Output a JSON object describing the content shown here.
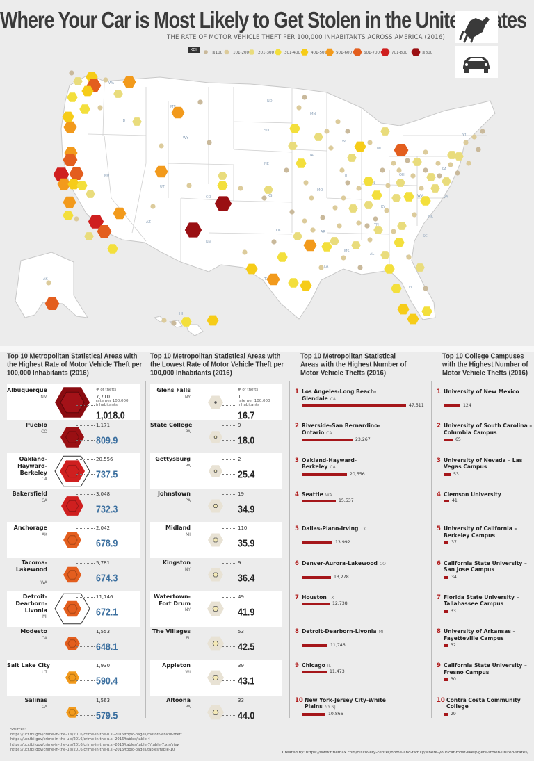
{
  "header": {
    "title": "Where Your Car is Most Likely to Get Stolen in the United States",
    "subtitle": "THE RATE OF MOTOR VEHICLE THEFT PER 100,000 INHABITANTS ACROSS AMERICA (2016)"
  },
  "legend": {
    "key_label": "KEY",
    "bins": [
      {
        "label": "≤100",
        "color": "#c9b99b"
      },
      {
        "label": "101-200",
        "color": "#dccb9b"
      },
      {
        "label": "201-300",
        "color": "#e9dc7c"
      },
      {
        "label": "301-400",
        "color": "#f3df3c"
      },
      {
        "label": "401-500",
        "color": "#f6cc18"
      },
      {
        "label": "501-600",
        "color": "#f29a1c"
      },
      {
        "label": "601-700",
        "color": "#e35e1e"
      },
      {
        "label": "701-800",
        "color": "#cf1f1f"
      },
      {
        "label": "≥800",
        "color": "#9a0f13"
      }
    ]
  },
  "map": {
    "state_labels": [
      "WA",
      "OR",
      "ID",
      "MT",
      "WY",
      "NV",
      "CA",
      "UT",
      "AZ",
      "CO",
      "NM",
      "ND",
      "SD",
      "NE",
      "KS",
      "OK",
      "TX",
      "MN",
      "IA",
      "MO",
      "AR",
      "LA",
      "WI",
      "IL",
      "MS",
      "MI",
      "IN",
      "KY",
      "TN",
      "AL",
      "OH",
      "GA",
      "FL",
      "SC",
      "NC",
      "VA",
      "WV",
      "PA",
      "NY",
      "AK",
      "HI"
    ]
  },
  "chart_data": [
    {
      "type": "bar",
      "title": "Top 10 Metropolitan Statistical Areas with the Highest Rate of Motor Vehicle Theft per 100,000 Inhabitants (2016)",
      "legend_labels": {
        "thefts": "# of thefts",
        "rate": "rate per 100,000 inhabitants"
      },
      "rows": [
        {
          "name": "Albuquerque",
          "state": "NM",
          "thefts": "7,710",
          "rate": "1,018.0"
        },
        {
          "name": "Pueblo",
          "state": "CO",
          "thefts": "1,171",
          "rate": "809.9"
        },
        {
          "name": "Oakland-Hayward-Berkeley",
          "state": "CA",
          "thefts": "20,556",
          "rate": "737.5"
        },
        {
          "name": "Bakersfield",
          "state": "CA",
          "thefts": "3,048",
          "rate": "732.3"
        },
        {
          "name": "Anchorage",
          "state": "AK",
          "thefts": "2,042",
          "rate": "678.9"
        },
        {
          "name": "Tacoma-Lakewood",
          "state": "WA",
          "thefts": "5,781",
          "rate": "674.3"
        },
        {
          "name": "Detroit-Dearborn-Livonia",
          "state": "MI",
          "thefts": "11,746",
          "rate": "672.1"
        },
        {
          "name": "Modesto",
          "state": "CA",
          "thefts": "1,553",
          "rate": "648.1"
        },
        {
          "name": "Salt Lake City",
          "state": "UT",
          "thefts": "1,930",
          "rate": "590.4"
        },
        {
          "name": "Salinas",
          "state": "CA",
          "thefts": "1,563",
          "rate": "579.5"
        }
      ]
    },
    {
      "type": "bar",
      "title": "Top 10 Metropolitan Statistical Areas with the Lowest Rate of Motor Vehicle Theft per 100,000 Inhabitants (2016)",
      "legend_labels": {
        "thefts": "# of thefts",
        "rate": "rate per 100,000 inhabitants"
      },
      "rows": [
        {
          "name": "Glens Falls",
          "state": "NY",
          "thefts": "1",
          "rate": "16.7"
        },
        {
          "name": "State College",
          "state": "PA",
          "thefts": "9",
          "rate": "18.0"
        },
        {
          "name": "Gettysburg",
          "state": "PA",
          "thefts": "2",
          "rate": "25.4"
        },
        {
          "name": "Johnstown",
          "state": "PA",
          "thefts": "19",
          "rate": "34.9"
        },
        {
          "name": "Midland",
          "state": "MI",
          "thefts": "110",
          "rate": "35.9"
        },
        {
          "name": "Kingston",
          "state": "NY",
          "thefts": "9",
          "rate": "36.4"
        },
        {
          "name": "Watertown-Fort Drum",
          "state": "NY",
          "thefts": "49",
          "rate": "41.9"
        },
        {
          "name": "The Villages",
          "state": "FL",
          "thefts": "53",
          "rate": "42.5"
        },
        {
          "name": "Appleton",
          "state": "WI",
          "thefts": "39",
          "rate": "43.1"
        },
        {
          "name": "Altoona",
          "state": "PA",
          "thefts": "33",
          "rate": "44.0"
        }
      ]
    },
    {
      "type": "bar",
      "title": "Top 10 Metropolitan Statistical Areas with the Highest Number of Motor Vehicle Thefts (2016)",
      "rows": [
        {
          "rank": "1",
          "name": "Los Angeles-Long Beach-Glendale",
          "state": "CA",
          "value": 47511,
          "label": "47,511"
        },
        {
          "rank": "2",
          "name": "Riverside-San Bernardino-Ontario",
          "state": "CA",
          "value": 23267,
          "label": "23,267"
        },
        {
          "rank": "3",
          "name": "Oakland-Hayward-Berkeley",
          "state": "CA",
          "value": 20556,
          "label": "20,556"
        },
        {
          "rank": "4",
          "name": "Seattle",
          "state": "WA",
          "value": 15537,
          "label": "15,537"
        },
        {
          "rank": "5",
          "name": "Dallas-Plano-Irving",
          "state": "TX",
          "value": 13992,
          "label": "13,992"
        },
        {
          "rank": "6",
          "name": "Denver-Aurora-Lakewood",
          "state": "CO",
          "value": 13278,
          "label": "13,278"
        },
        {
          "rank": "7",
          "name": "Houston",
          "state": "TX",
          "value": 12738,
          "label": "12,738"
        },
        {
          "rank": "8",
          "name": "Detroit-Dearborn-Livonia",
          "state": "MI",
          "value": 11746,
          "label": "11,746"
        },
        {
          "rank": "9",
          "name": "Chicago",
          "state": "IL",
          "value": 11473,
          "label": "11,473"
        },
        {
          "rank": "10",
          "name": "New York-Jersey City-White Plains",
          "state": "NY-NJ",
          "value": 10866,
          "label": "10,866"
        }
      ]
    },
    {
      "type": "bar",
      "title": "Top 10 College Campuses with the Highest Number of Motor Vehicle Thefts (2016)",
      "rows": [
        {
          "rank": "1",
          "name": "University of New Mexico",
          "value": 124,
          "label": "124"
        },
        {
          "rank": "2",
          "name": "University of South Carolina – Columbia Campus",
          "value": 65,
          "label": "65"
        },
        {
          "rank": "3",
          "name": "University of Nevada – Las Vegas Campus",
          "value": 53,
          "label": "53"
        },
        {
          "rank": "4",
          "name": "Clemson University",
          "value": 41,
          "label": "41"
        },
        {
          "rank": "5",
          "name": "University of California – Berkeley Campus",
          "value": 37,
          "label": "37"
        },
        {
          "rank": "6",
          "name": "California State University – San Jose Campus",
          "value": 34,
          "label": "34"
        },
        {
          "rank": "7",
          "name": "Florida State University – Tallahassee Campus",
          "value": 33,
          "label": "33"
        },
        {
          "rank": "8",
          "name": "University of Arkansas – Fayetteville Campus",
          "value": 32,
          "label": "32"
        },
        {
          "rank": "9",
          "name": "California State University – Fresno Campus",
          "value": 30,
          "label": "30"
        },
        {
          "rank": "10",
          "name": "Contra Costa Community College",
          "value": 29,
          "label": "29"
        }
      ]
    }
  ],
  "footer": {
    "sources_label": "Sources:",
    "sources": [
      "https://ucr.fbi.gov/crime-in-the-u.s/2016/crime-in-the-u.s.-2016/topic-pages/motor-vehicle-theft",
      "https://ucr.fbi.gov/crime-in-the-u.s/2016/crime-in-the-u.s.-2016/tables/table-4",
      "https://ucr.fbi.gov/crime-in-the-u.s/2016/crime-in-the-u.s.-2016/tables/table-7/table-7.xls/view",
      "https://ucr.fbi.gov/crime-in-the-u.s/2016/crime-in-the-u.s.-2016/topic-pages/tables/table-10"
    ],
    "credit": "Created by: https://www.titlemax.com/discovery-center/home-and-family/where-your-car-most-likely-gets-stolen-united-states/"
  }
}
